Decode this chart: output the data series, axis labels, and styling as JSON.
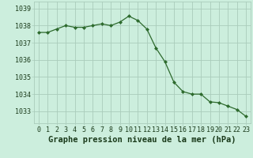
{
  "x": [
    0,
    1,
    2,
    3,
    4,
    5,
    6,
    7,
    8,
    9,
    10,
    11,
    12,
    13,
    14,
    15,
    16,
    17,
    18,
    19,
    20,
    21,
    22,
    23
  ],
  "y": [
    1037.6,
    1037.6,
    1037.8,
    1038.0,
    1037.9,
    1037.9,
    1038.0,
    1038.1,
    1038.0,
    1038.2,
    1038.55,
    1038.3,
    1037.8,
    1036.7,
    1035.9,
    1034.7,
    1034.15,
    1034.0,
    1034.0,
    1033.55,
    1033.5,
    1033.3,
    1033.1,
    1032.7
  ],
  "line_color": "#2d6a2d",
  "marker": "D",
  "marker_size": 2.0,
  "background_color": "#cceedd",
  "grid_color": "#aaccbb",
  "xlabel": "Graphe pression niveau de la mer (hPa)",
  "xlabel_fontsize": 7.5,
  "xlabel_color": "#1a3a1a",
  "ytick_labels": [
    1033,
    1034,
    1035,
    1036,
    1037,
    1038,
    1039
  ],
  "ylim": [
    1032.3,
    1039.4
  ],
  "xlim": [
    -0.5,
    23.5
  ],
  "xtick_labels": [
    "0",
    "1",
    "2",
    "3",
    "4",
    "5",
    "6",
    "7",
    "8",
    "9",
    "10",
    "11",
    "12",
    "13",
    "14",
    "15",
    "16",
    "17",
    "18",
    "19",
    "20",
    "21",
    "22",
    "23"
  ],
  "tick_fontsize": 6.0,
  "tick_color": "#1a3a1a"
}
